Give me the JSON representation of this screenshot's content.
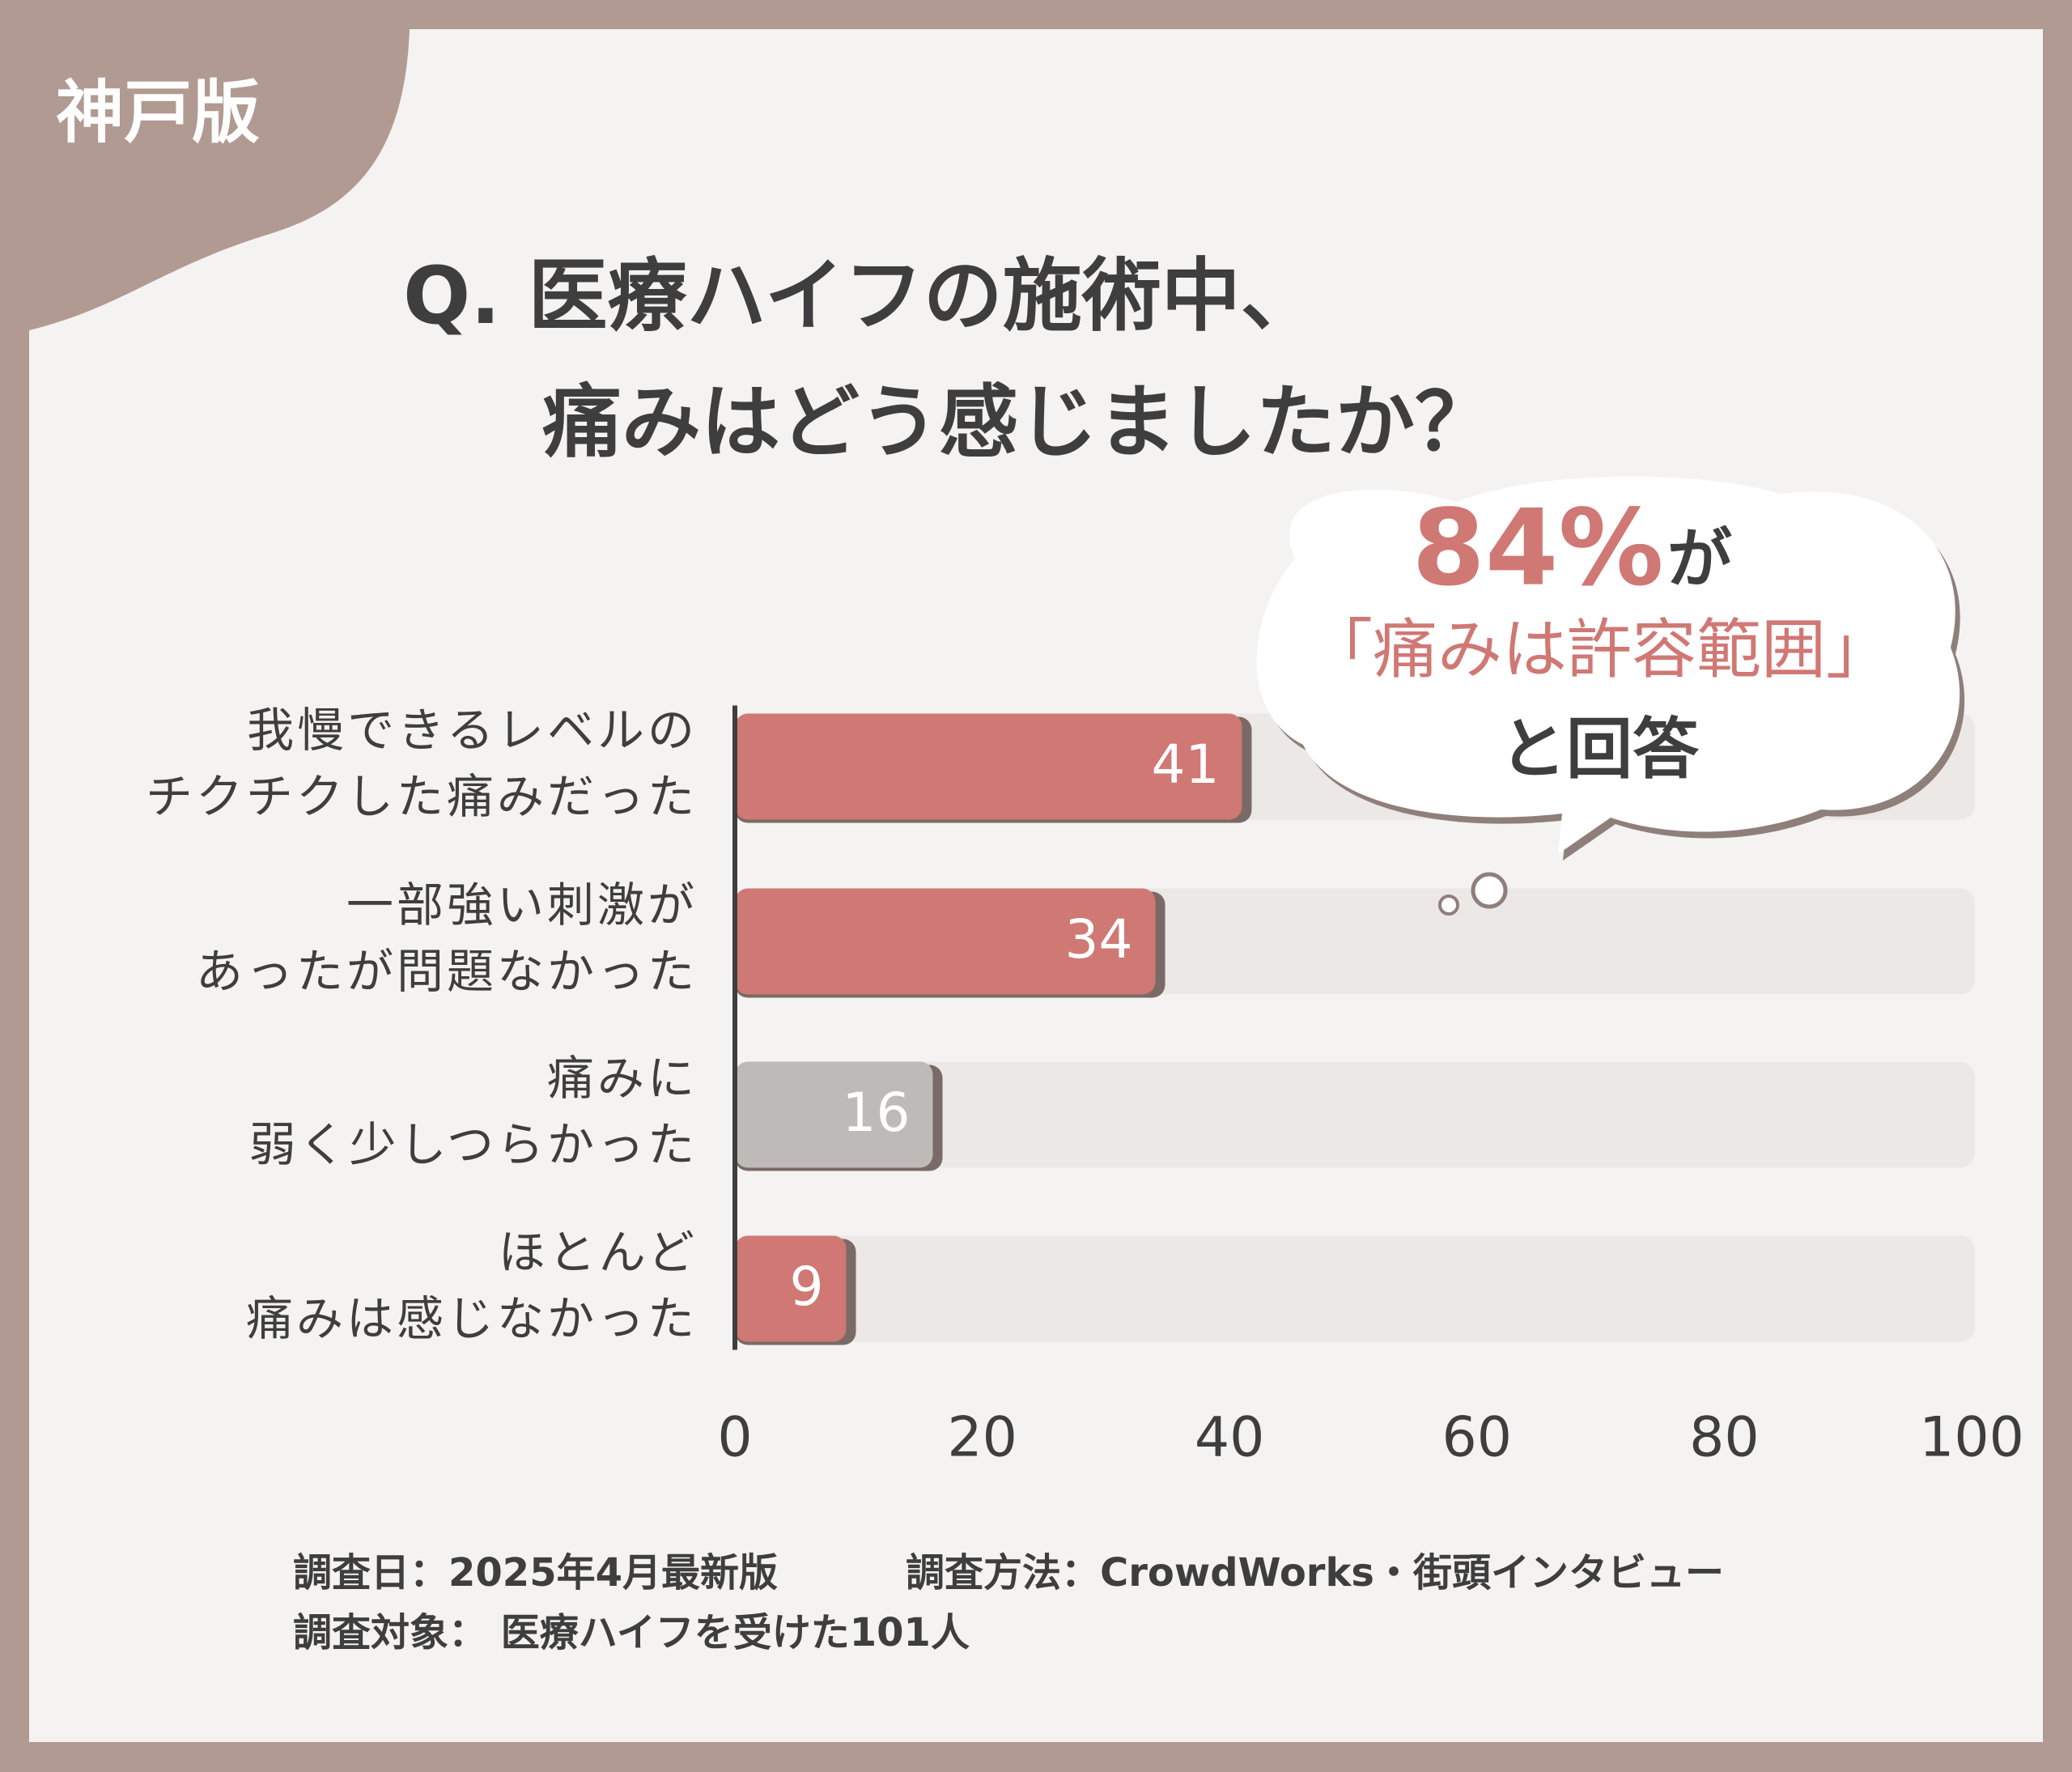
{
  "badge": "神戸版",
  "chart_data": {
    "type": "barh",
    "title": [
      "Q. 医療ハイフの施術中、",
      "痛みはどう感じましたか？"
    ],
    "categories": [
      [
        "我慢できるレベルの",
        "チクチクした痛みだった"
      ],
      [
        "一部強い刺激が",
        "あったが問題なかった"
      ],
      [
        "痛みに",
        "弱く少しつらかった"
      ],
      [
        "ほとんど",
        "痛みは感じなかった"
      ]
    ],
    "values": [
      41,
      34,
      16,
      9
    ],
    "colors": [
      "#d07874",
      "#d07874",
      "#bebab8",
      "#d07874"
    ],
    "xlim": [
      0,
      100
    ],
    "xticks": [
      0,
      20,
      40,
      60,
      80,
      100
    ],
    "callout": {
      "percent": "84%",
      "particle": "が",
      "quote": "「痛みは許容範囲」",
      "tail": "と回答"
    }
  },
  "footer": {
    "date": "調査日：2025年4月最新版",
    "method": "調査方法：CrowdWorks・街頭インタビュー",
    "target": "調査対象： 医療ハイフを受けた101人"
  }
}
